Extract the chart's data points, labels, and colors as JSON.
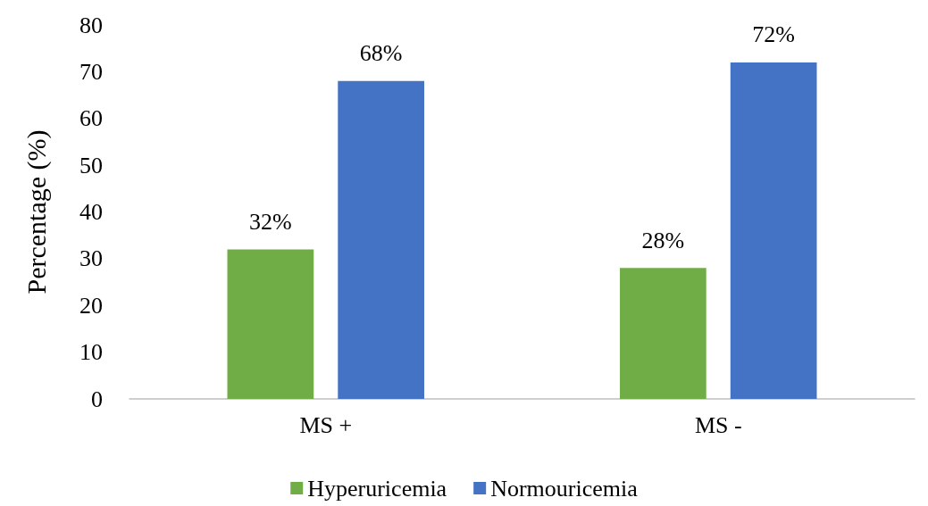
{
  "chart_data": {
    "type": "bar",
    "ylabel": "Percentage (%)",
    "categories": [
      "MS +",
      "MS -"
    ],
    "series": [
      {
        "name": "Hyperuricemia",
        "color": "#70ad47",
        "values": [
          32,
          28
        ],
        "value_labels": [
          "32%",
          "28%"
        ]
      },
      {
        "name": "Normouricemia",
        "color": "#4472c4",
        "values": [
          68,
          72
        ],
        "value_labels": [
          "68%",
          "72%"
        ]
      }
    ],
    "ylim": [
      0,
      80
    ],
    "yticks": [
      0,
      10,
      20,
      30,
      40,
      50,
      60,
      70,
      80
    ],
    "grid": false,
    "legend": "bottom"
  }
}
